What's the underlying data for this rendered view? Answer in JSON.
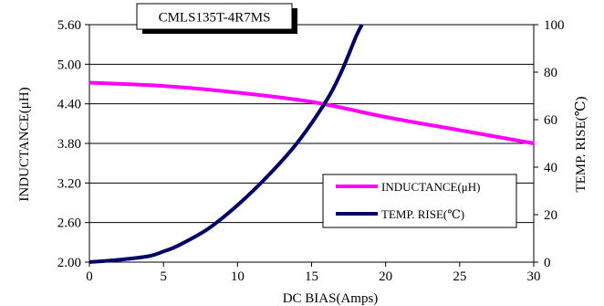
{
  "chart_data": {
    "type": "line",
    "title": "CMLS135T-4R7MS",
    "xlabel": "DC BIAS(Amps)",
    "ylabel": "INDUCTANCE(μH)",
    "y2label": "TEMP. RISE(℃)",
    "xlim": [
      0,
      30
    ],
    "ylim": [
      2.0,
      5.6
    ],
    "y2lim": [
      0,
      100
    ],
    "xticks": [
      "0",
      "5",
      "10",
      "15",
      "20",
      "25",
      "30"
    ],
    "yticks": [
      "2.00",
      "2.60",
      "3.20",
      "3.80",
      "4.40",
      "5.00",
      "5.60"
    ],
    "y2ticks": [
      "0",
      "20",
      "40",
      "60",
      "80",
      "100"
    ],
    "grid": "horizontal",
    "legend_position": "bottom-right",
    "series": [
      {
        "name": "INDUCTANCE(μH)",
        "axis": "left",
        "color": "#ff00ff",
        "x": [
          0,
          5,
          10,
          15,
          20,
          25,
          30
        ],
        "y": [
          4.72,
          4.67,
          4.57,
          4.43,
          4.2,
          4.0,
          3.8
        ]
      },
      {
        "name": "TEMP. RISE(℃)",
        "axis": "right",
        "color": "#000066",
        "x": [
          0,
          2,
          4,
          5,
          6,
          8,
          10,
          12,
          14,
          16,
          17,
          18,
          18.4
        ],
        "y": [
          0,
          1,
          2.5,
          4.5,
          7,
          14,
          24,
          36,
          50,
          68,
          80,
          95,
          100
        ]
      }
    ]
  }
}
